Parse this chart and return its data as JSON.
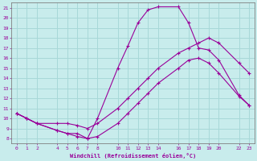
{
  "xlabel": "Windchill (Refroidissement éolien,°C)",
  "background_color": "#c8ecec",
  "grid_color": "#a8d8d8",
  "line_color": "#990099",
  "yticks": [
    8,
    9,
    10,
    11,
    12,
    13,
    14,
    15,
    16,
    17,
    18,
    19,
    20,
    21
  ],
  "xticks": [
    0,
    1,
    2,
    4,
    5,
    6,
    7,
    8,
    10,
    11,
    12,
    13,
    14,
    16,
    17,
    18,
    19,
    20,
    22,
    23
  ],
  "ylim": [
    7.5,
    21.5
  ],
  "xlim": [
    -0.5,
    23.5
  ],
  "line1_x": [
    0,
    1,
    2,
    4,
    5,
    6,
    7,
    8,
    10,
    11,
    12,
    13,
    14,
    16,
    17,
    18,
    19,
    20,
    22,
    23
  ],
  "line1_y": [
    10.5,
    10.0,
    9.5,
    9.5,
    9.5,
    9.3,
    9.0,
    9.5,
    11.0,
    12.0,
    13.0,
    14.0,
    15.0,
    16.5,
    17.0,
    17.5,
    18.0,
    17.5,
    15.5,
    14.5
  ],
  "line2_x": [
    0,
    1,
    2,
    4,
    5,
    6,
    7,
    8,
    10,
    11,
    12,
    13,
    14,
    16,
    17,
    18,
    19,
    20,
    22,
    23
  ],
  "line2_y": [
    10.5,
    10.0,
    9.5,
    8.8,
    8.5,
    8.2,
    8.0,
    8.2,
    9.5,
    10.5,
    11.5,
    12.5,
    13.5,
    15.0,
    15.8,
    16.0,
    15.5,
    14.5,
    12.2,
    11.3
  ],
  "line3_x": [
    0,
    1,
    2,
    4,
    5,
    6,
    7,
    8,
    10,
    11,
    12,
    13,
    14,
    16,
    17,
    18,
    19,
    20,
    22,
    23
  ],
  "line3_y": [
    10.5,
    10.0,
    9.5,
    8.8,
    8.5,
    8.5,
    8.0,
    10.0,
    15.0,
    17.2,
    19.5,
    20.8,
    21.1,
    21.1,
    19.5,
    17.0,
    16.8,
    15.8,
    12.3,
    11.3
  ]
}
